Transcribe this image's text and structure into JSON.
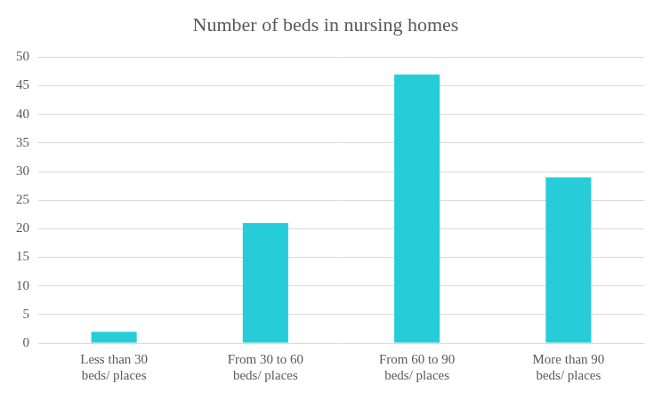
{
  "chart_data": {
    "type": "bar",
    "title": "Number of beds in nursing homes",
    "categories": [
      "Less than 30 beds/ places",
      "From 30 to 60 beds/ places",
      "From 60 to 90 beds/ places",
      "More than 90 beds/ places"
    ],
    "values": [
      2,
      21,
      47,
      29
    ],
    "color": "#26cdd8",
    "ylim": [
      0,
      50
    ],
    "yticks": [
      0,
      5,
      10,
      15,
      20,
      25,
      30,
      35,
      40,
      45,
      50
    ],
    "grid": true
  }
}
